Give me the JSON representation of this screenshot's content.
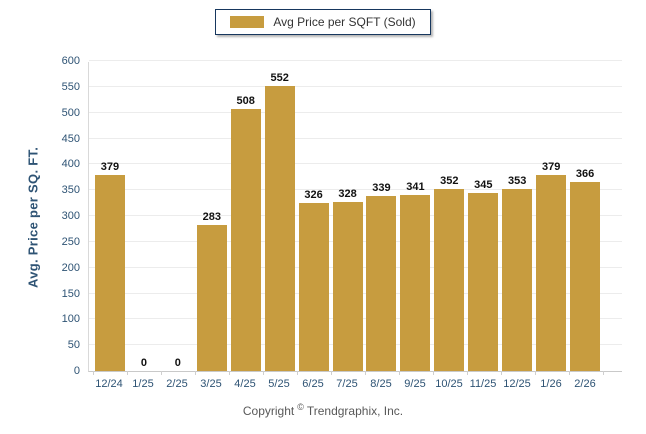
{
  "chart_data": {
    "type": "bar",
    "title": "",
    "series_name": "Avg Price per SQFT (Sold)",
    "categories": [
      "12/24",
      "1/25",
      "2/25",
      "3/25",
      "4/25",
      "5/25",
      "6/25",
      "7/25",
      "8/25",
      "9/25",
      "10/25",
      "11/25",
      "12/25",
      "1/26",
      "2/26"
    ],
    "values": [
      379,
      0,
      0,
      283,
      508,
      552,
      326,
      328,
      339,
      341,
      352,
      345,
      353,
      379,
      366
    ],
    "xlabel": "",
    "ylabel": "Avg. Price per SQ. FT.",
    "ylim": [
      0,
      600
    ],
    "ytick_step": 50,
    "grid": true,
    "legend_position": "top-center",
    "bar_color": "#C79C3F"
  },
  "footer": {
    "copyright_prefix": "Copyright",
    "copyright_symbol": "©",
    "copyright_company": "Trendgraphix, Inc."
  },
  "colors": {
    "bar": "#C79C3F",
    "axis_text": "#2E5374",
    "value_label": "#111111",
    "gridline": "#ECECEC",
    "legend_border": "#17375E",
    "copyright_text": "#595959"
  }
}
